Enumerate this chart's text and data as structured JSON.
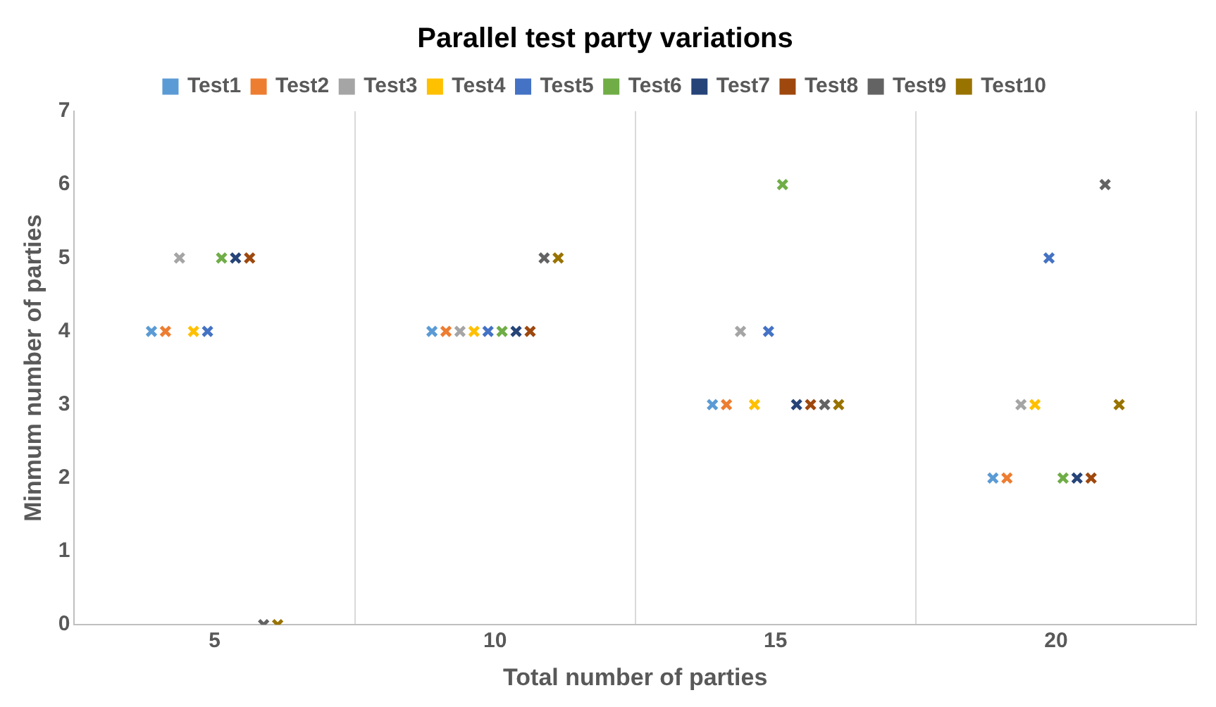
{
  "chart_data": {
    "type": "scatter",
    "title": "Parallel test party variations",
    "xlabel": "Total number of parties",
    "ylabel": "Minmum number of parties",
    "categories": [
      "5",
      "10",
      "15",
      "20"
    ],
    "ylim": [
      0,
      7
    ],
    "yticks": [
      0,
      1,
      2,
      3,
      4,
      5,
      6,
      7
    ],
    "grid": "x",
    "legend": "top",
    "marker": "cross",
    "series": [
      {
        "name": "Test1",
        "color": "#5b9bd5",
        "values": [
          4,
          4,
          3,
          2
        ]
      },
      {
        "name": "Test2",
        "color": "#ed7d31",
        "values": [
          4,
          4,
          3,
          2
        ]
      },
      {
        "name": "Test3",
        "color": "#a5a5a5",
        "values": [
          5,
          4,
          4,
          3
        ]
      },
      {
        "name": "Test4",
        "color": "#ffc000",
        "values": [
          4,
          4,
          3,
          3
        ]
      },
      {
        "name": "Test5",
        "color": "#4472c4",
        "values": [
          4,
          4,
          4,
          5
        ]
      },
      {
        "name": "Test6",
        "color": "#70ad47",
        "values": [
          5,
          4,
          6,
          2
        ]
      },
      {
        "name": "Test7",
        "color": "#264478",
        "values": [
          5,
          4,
          3,
          2
        ]
      },
      {
        "name": "Test8",
        "color": "#9e480e",
        "values": [
          5,
          4,
          3,
          2
        ]
      },
      {
        "name": "Test9",
        "color": "#636363",
        "values": [
          0,
          5,
          3,
          6
        ]
      },
      {
        "name": "Test10",
        "color": "#997300",
        "values": [
          0,
          5,
          3,
          3
        ]
      }
    ]
  }
}
